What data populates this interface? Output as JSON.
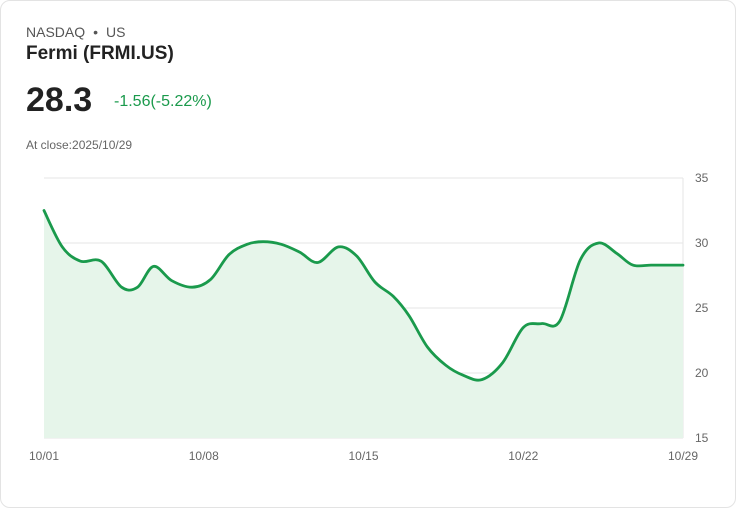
{
  "header": {
    "exchange": "NASDAQ",
    "separator": "•",
    "region": "US",
    "title": "Fermi (FRMI.US)",
    "price": "28.3",
    "change": "-1.56(-5.22%)",
    "close_label": "At close:2025/10/29"
  },
  "colors": {
    "line": "#1a9a4c",
    "fill": "#e6f5ea",
    "grid": "#e6e6e6",
    "change": "#1a9a4c"
  },
  "chart_data": {
    "type": "area",
    "title": "",
    "xlabel": "",
    "ylabel": "",
    "ylim": [
      15,
      35
    ],
    "yticks": [
      35,
      30,
      25,
      20,
      15
    ],
    "xtick_labels": [
      "10/01",
      "10/08",
      "10/15",
      "10/22",
      "10/29"
    ],
    "xtick_days": [
      0,
      7,
      14,
      21,
      28
    ],
    "grid": true,
    "series": [
      {
        "name": "FRMI.US",
        "x": [
          0,
          0.8,
          1.6,
          2.5,
          3.4,
          4.1,
          4.8,
          5.6,
          6.5,
          7.3,
          8.1,
          8.9,
          9.6,
          10.4,
          11.2,
          12.0,
          12.9,
          13.7,
          14.5,
          15.3,
          16.0,
          16.8,
          17.6,
          18.4,
          19.2,
          20.1,
          21.0,
          21.8,
          22.6,
          23.5,
          24.3,
          25.1,
          25.8,
          26.6,
          27.3,
          28.0
        ],
        "values": [
          32.5,
          29.7,
          28.6,
          28.6,
          26.6,
          26.6,
          28.2,
          27.1,
          26.6,
          27.2,
          29.1,
          29.9,
          30.1,
          29.9,
          29.3,
          28.5,
          29.7,
          29.0,
          27.0,
          25.9,
          24.4,
          22.0,
          20.6,
          19.8,
          19.5,
          20.8,
          23.5,
          23.8,
          24.0,
          28.7,
          30.0,
          29.2,
          28.3,
          28.3,
          28.3,
          28.3
        ]
      }
    ]
  }
}
